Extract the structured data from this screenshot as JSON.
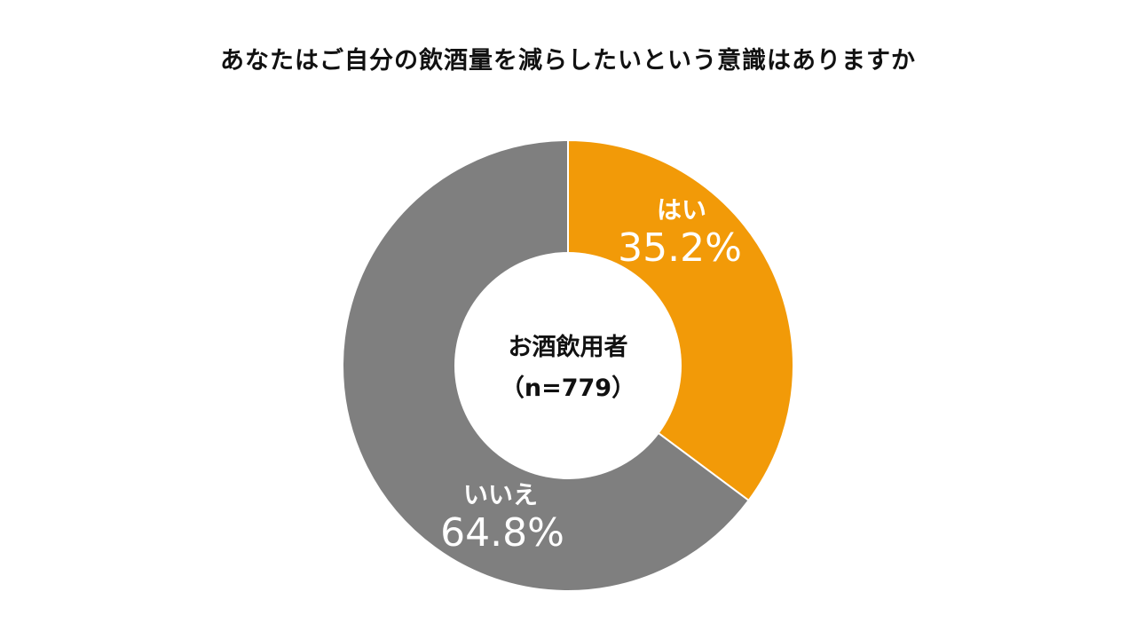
{
  "chart_data": {
    "type": "pie",
    "variant": "donut",
    "title": "あなたはご自分の飲酒量を減らしたいという意識はありますか",
    "center_label": [
      "お酒飲用者",
      "（n=779）"
    ],
    "slices": [
      {
        "label": "はい",
        "value": 35.2,
        "display": "35.2%",
        "color": "#f29a08"
      },
      {
        "label": "いいえ",
        "value": 64.8,
        "display": "64.8%",
        "color": "#7f7f7f"
      }
    ]
  }
}
